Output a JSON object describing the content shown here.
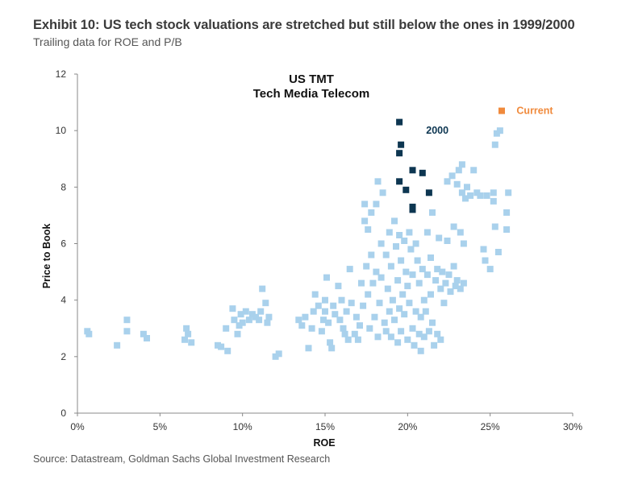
{
  "header": {
    "title": "Exhibit 10: US tech stock valuations are stretched but still below the ones in 1999/2000",
    "subtitle": "Trailing data for ROE and P/B"
  },
  "footer": {
    "source": "Source: Datastream, Goldman Sachs Global Investment Research"
  },
  "colors": {
    "history": "#a9d1ec",
    "year_2000": "#0d3651",
    "current": "#f08a3c",
    "axis": "#888888",
    "text": "#333333"
  },
  "chart_data": {
    "type": "scatter",
    "title": "US TMT",
    "subtitle": "Tech Media Telecom",
    "xlabel": "ROE",
    "ylabel": "Price to Book",
    "xlim": [
      0,
      30
    ],
    "ylim": [
      0,
      12
    ],
    "x_ticks": [
      "0%",
      "5%",
      "10%",
      "15%",
      "20%",
      "25%",
      "30%"
    ],
    "y_ticks": [
      "0",
      "2",
      "4",
      "6",
      "8",
      "10",
      "12"
    ],
    "grid": false,
    "annotations": [
      {
        "text": "2000",
        "series": "year_2000",
        "x": 21.8,
        "y": 10.0
      },
      {
        "text": "Current",
        "series": "current",
        "x": 26.6,
        "y": 10.7
      }
    ],
    "series": [
      {
        "id": "history",
        "color": "#a9d1ec",
        "points": [
          [
            0.6,
            2.9
          ],
          [
            0.7,
            2.8
          ],
          [
            2.4,
            2.4
          ],
          [
            3.0,
            3.3
          ],
          [
            3.0,
            2.9
          ],
          [
            4.0,
            2.8
          ],
          [
            4.2,
            2.65
          ],
          [
            6.5,
            2.6
          ],
          [
            6.6,
            3.0
          ],
          [
            6.7,
            2.8
          ],
          [
            6.9,
            2.5
          ],
          [
            8.5,
            2.4
          ],
          [
            8.7,
            2.35
          ],
          [
            9.1,
            2.2
          ],
          [
            9.0,
            3.0
          ],
          [
            9.4,
            3.7
          ],
          [
            9.5,
            3.3
          ],
          [
            9.7,
            2.8
          ],
          [
            9.8,
            3.1
          ],
          [
            9.9,
            3.5
          ],
          [
            10.0,
            3.2
          ],
          [
            10.2,
            3.6
          ],
          [
            10.4,
            3.3
          ],
          [
            10.6,
            3.5
          ],
          [
            10.8,
            3.4
          ],
          [
            11.0,
            3.3
          ],
          [
            11.1,
            3.6
          ],
          [
            11.2,
            4.4
          ],
          [
            11.4,
            3.9
          ],
          [
            11.5,
            3.2
          ],
          [
            11.6,
            3.4
          ],
          [
            12.0,
            2.0
          ],
          [
            12.2,
            2.1
          ],
          [
            13.4,
            3.3
          ],
          [
            13.6,
            3.1
          ],
          [
            13.8,
            3.4
          ],
          [
            14.0,
            2.3
          ],
          [
            14.2,
            3.0
          ],
          [
            14.3,
            3.6
          ],
          [
            14.4,
            4.2
          ],
          [
            14.6,
            3.8
          ],
          [
            14.8,
            2.9
          ],
          [
            14.9,
            3.3
          ],
          [
            15.0,
            3.6
          ],
          [
            15.0,
            4.0
          ],
          [
            15.1,
            4.8
          ],
          [
            15.2,
            3.2
          ],
          [
            15.3,
            2.5
          ],
          [
            15.4,
            2.3
          ],
          [
            15.5,
            3.8
          ],
          [
            15.6,
            3.5
          ],
          [
            15.8,
            4.5
          ],
          [
            15.9,
            3.3
          ],
          [
            16.0,
            4.0
          ],
          [
            16.1,
            3.0
          ],
          [
            16.2,
            2.8
          ],
          [
            16.3,
            3.6
          ],
          [
            16.4,
            2.6
          ],
          [
            16.5,
            5.1
          ],
          [
            16.6,
            3.9
          ],
          [
            16.8,
            2.8
          ],
          [
            16.9,
            3.4
          ],
          [
            17.0,
            2.6
          ],
          [
            17.1,
            3.1
          ],
          [
            17.2,
            4.6
          ],
          [
            17.3,
            3.8
          ],
          [
            17.4,
            6.8
          ],
          [
            17.4,
            7.4
          ],
          [
            17.5,
            5.2
          ],
          [
            17.6,
            4.2
          ],
          [
            17.6,
            6.5
          ],
          [
            17.7,
            3.0
          ],
          [
            17.8,
            5.6
          ],
          [
            17.8,
            7.1
          ],
          [
            17.9,
            4.6
          ],
          [
            18.0,
            3.4
          ],
          [
            18.1,
            5.0
          ],
          [
            18.1,
            7.4
          ],
          [
            18.2,
            8.2
          ],
          [
            18.2,
            2.7
          ],
          [
            18.3,
            3.9
          ],
          [
            18.4,
            4.8
          ],
          [
            18.4,
            6.0
          ],
          [
            18.5,
            7.8
          ],
          [
            18.6,
            3.2
          ],
          [
            18.7,
            5.6
          ],
          [
            18.7,
            2.9
          ],
          [
            18.8,
            4.4
          ],
          [
            18.9,
            6.4
          ],
          [
            18.9,
            3.6
          ],
          [
            19.0,
            5.2
          ],
          [
            19.0,
            2.7
          ],
          [
            19.1,
            4.0
          ],
          [
            19.2,
            6.8
          ],
          [
            19.2,
            3.3
          ],
          [
            19.3,
            5.9
          ],
          [
            19.4,
            4.7
          ],
          [
            19.4,
            2.5
          ],
          [
            19.5,
            6.3
          ],
          [
            19.5,
            3.7
          ],
          [
            19.6,
            5.4
          ],
          [
            19.6,
            2.9
          ],
          [
            19.7,
            4.2
          ],
          [
            19.8,
            6.1
          ],
          [
            19.8,
            3.5
          ],
          [
            19.9,
            5.0
          ],
          [
            20.0,
            2.6
          ],
          [
            20.0,
            4.5
          ],
          [
            20.1,
            6.4
          ],
          [
            20.1,
            3.9
          ],
          [
            20.2,
            5.8
          ],
          [
            20.3,
            3.0
          ],
          [
            20.3,
            4.9
          ],
          [
            20.4,
            2.4
          ],
          [
            20.5,
            6.0
          ],
          [
            20.5,
            3.6
          ],
          [
            20.6,
            5.4
          ],
          [
            20.7,
            2.8
          ],
          [
            20.7,
            4.6
          ],
          [
            20.8,
            3.4
          ],
          [
            20.8,
            2.2
          ],
          [
            20.9,
            5.1
          ],
          [
            21.0,
            4.0
          ],
          [
            21.0,
            2.7
          ],
          [
            21.1,
            3.6
          ],
          [
            21.2,
            6.4
          ],
          [
            21.2,
            4.9
          ],
          [
            21.3,
            2.9
          ],
          [
            21.4,
            5.5
          ],
          [
            21.4,
            4.2
          ],
          [
            21.5,
            3.2
          ],
          [
            21.5,
            7.1
          ],
          [
            21.6,
            2.4
          ],
          [
            21.7,
            4.7
          ],
          [
            21.8,
            5.1
          ],
          [
            21.8,
            2.8
          ],
          [
            21.9,
            6.2
          ],
          [
            22.0,
            4.4
          ],
          [
            22.0,
            2.6
          ],
          [
            22.1,
            5.0
          ],
          [
            22.2,
            3.9
          ],
          [
            22.3,
            4.6
          ],
          [
            22.4,
            6.1
          ],
          [
            22.4,
            8.2
          ],
          [
            22.5,
            4.9
          ],
          [
            22.6,
            4.3
          ],
          [
            22.7,
            8.4
          ],
          [
            22.8,
            5.2
          ],
          [
            22.8,
            6.6
          ],
          [
            22.9,
            4.5
          ],
          [
            23.0,
            8.1
          ],
          [
            23.0,
            4.7
          ],
          [
            23.1,
            8.6
          ],
          [
            23.2,
            6.4
          ],
          [
            23.2,
            4.4
          ],
          [
            23.3,
            8.8
          ],
          [
            23.3,
            7.8
          ],
          [
            23.4,
            6.0
          ],
          [
            23.4,
            4.6
          ],
          [
            23.5,
            7.6
          ],
          [
            23.6,
            8.0
          ],
          [
            23.8,
            7.7
          ],
          [
            24.0,
            8.6
          ],
          [
            24.2,
            7.8
          ],
          [
            24.4,
            7.7
          ],
          [
            24.6,
            5.8
          ],
          [
            24.7,
            5.4
          ],
          [
            24.8,
            7.7
          ],
          [
            25.0,
            5.1
          ],
          [
            25.2,
            7.5
          ],
          [
            25.2,
            7.8
          ],
          [
            25.3,
            9.5
          ],
          [
            25.3,
            6.6
          ],
          [
            25.4,
            9.9
          ],
          [
            25.5,
            5.7
          ],
          [
            25.6,
            10.0
          ],
          [
            26.0,
            7.1
          ],
          [
            26.0,
            6.5
          ],
          [
            26.1,
            7.8
          ]
        ]
      },
      {
        "id": "year_2000",
        "color": "#0d3651",
        "points": [
          [
            19.5,
            10.3
          ],
          [
            19.6,
            9.5
          ],
          [
            19.5,
            9.2
          ],
          [
            19.5,
            8.2
          ],
          [
            20.3,
            8.6
          ],
          [
            20.9,
            8.5
          ],
          [
            19.9,
            7.9
          ],
          [
            21.3,
            7.8
          ],
          [
            20.3,
            7.3
          ],
          [
            20.3,
            7.2
          ]
        ]
      },
      {
        "id": "current",
        "color": "#f08a3c",
        "points": [
          [
            25.7,
            10.7
          ]
        ]
      }
    ]
  }
}
